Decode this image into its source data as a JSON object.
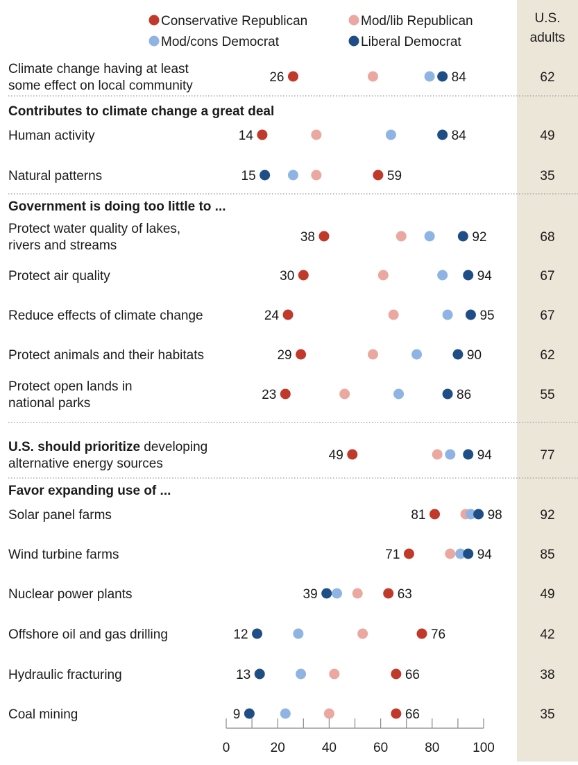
{
  "chart_data": {
    "type": "scatter",
    "xlim": [
      0,
      100
    ],
    "x_ticks": [
      "0",
      "20",
      "40",
      "60",
      "80",
      "100"
    ],
    "grid": false,
    "legend_position": "top",
    "legend": [
      {
        "key": "cons_rep",
        "name": "Conservative Republican",
        "color": "#c0392b"
      },
      {
        "key": "mod_rep",
        "name": "Mod/lib Republican",
        "color": "#eba8a1"
      },
      {
        "key": "mod_dem",
        "name": "Mod/cons Democrat",
        "color": "#8fb4e3"
      },
      {
        "key": "lib_dem",
        "name": "Liberal Democrat",
        "color": "#1f4e86"
      }
    ],
    "us_adults_header": [
      "U.S.",
      "adults"
    ],
    "rows": [
      {
        "label": [
          "Climate change having at least",
          "some effect on local community"
        ],
        "values": {
          "cons_rep": 26,
          "mod_rep": 57,
          "mod_dem": 79,
          "lib_dem": 84
        },
        "left_label": "26",
        "right_label": "84",
        "us_adults": "62"
      },
      {
        "section": "Contributes to climate change a great deal",
        "label": [
          "Human activity"
        ],
        "values": {
          "cons_rep": 14,
          "mod_rep": 35,
          "mod_dem": 64,
          "lib_dem": 84
        },
        "left_label": "14",
        "right_label": "84",
        "us_adults": "49"
      },
      {
        "label": [
          "Natural patterns"
        ],
        "values": {
          "cons_rep": 59,
          "mod_rep": 35,
          "mod_dem": 26,
          "lib_dem": 15
        },
        "left_label": "15",
        "right_label": "59",
        "us_adults": "35"
      },
      {
        "section": "Government is doing too little to ...",
        "label": [
          "Protect water quality of lakes,",
          "rivers and streams"
        ],
        "values": {
          "cons_rep": 38,
          "mod_rep": 68,
          "mod_dem": 79,
          "lib_dem": 92
        },
        "left_label": "38",
        "right_label": "92",
        "us_adults": "68"
      },
      {
        "label": [
          "Protect air quality"
        ],
        "values": {
          "cons_rep": 30,
          "mod_rep": 61,
          "mod_dem": 84,
          "lib_dem": 94
        },
        "left_label": "30",
        "right_label": "94",
        "us_adults": "67"
      },
      {
        "label": [
          "Reduce effects of climate change"
        ],
        "values": {
          "cons_rep": 24,
          "mod_rep": 65,
          "mod_dem": 86,
          "lib_dem": 95
        },
        "left_label": "24",
        "right_label": "95",
        "us_adults": "67"
      },
      {
        "label": [
          "Protect animals and their habitats"
        ],
        "values": {
          "cons_rep": 29,
          "mod_rep": 57,
          "mod_dem": 74,
          "lib_dem": 90
        },
        "left_label": "29",
        "right_label": "90",
        "us_adults": "62"
      },
      {
        "label": [
          "Protect open lands in",
          "national parks"
        ],
        "values": {
          "cons_rep": 23,
          "mod_rep": 46,
          "mod_dem": 67,
          "lib_dem": 86
        },
        "left_label": "23",
        "right_label": "86",
        "us_adults": "55"
      },
      {
        "label_bold": "U.S. should prioritize",
        "label": [
          "developing",
          "alternative energy sources"
        ],
        "values": {
          "cons_rep": 49,
          "mod_rep": 82,
          "mod_dem": 87,
          "lib_dem": 94
        },
        "left_label": "49",
        "right_label": "94",
        "us_adults": "77"
      },
      {
        "section": "Favor expanding use of ...",
        "label": [
          "Solar panel farms"
        ],
        "values": {
          "cons_rep": 81,
          "mod_rep": 93,
          "mod_dem": 95,
          "lib_dem": 98
        },
        "left_label": "81",
        "right_label": "98",
        "us_adults": "92"
      },
      {
        "label": [
          "Wind turbine farms"
        ],
        "values": {
          "cons_rep": 71,
          "mod_rep": 87,
          "mod_dem": 91,
          "lib_dem": 94
        },
        "left_label": "71",
        "right_label": "94",
        "us_adults": "85"
      },
      {
        "label": [
          "Nuclear power plants"
        ],
        "values": {
          "cons_rep": 63,
          "mod_rep": 51,
          "mod_dem": 43,
          "lib_dem": 39
        },
        "left_label": "39",
        "right_label": "63",
        "us_adults": "49"
      },
      {
        "label": [
          "Offshore oil and gas drilling"
        ],
        "values": {
          "cons_rep": 76,
          "mod_rep": 53,
          "mod_dem": 28,
          "lib_dem": 12
        },
        "left_label": "12",
        "right_label": "76",
        "us_adults": "42"
      },
      {
        "label": [
          "Hydraulic fracturing"
        ],
        "values": {
          "cons_rep": 66,
          "mod_rep": 42,
          "mod_dem": 29,
          "lib_dem": 13
        },
        "left_label": "13",
        "right_label": "66",
        "us_adults": "38"
      },
      {
        "label": [
          "Coal mining"
        ],
        "values": {
          "cons_rep": 66,
          "mod_rep": 40,
          "mod_dem": 23,
          "lib_dem": 9
        },
        "left_label": "9",
        "right_label": "66",
        "us_adults": "35"
      }
    ]
  }
}
